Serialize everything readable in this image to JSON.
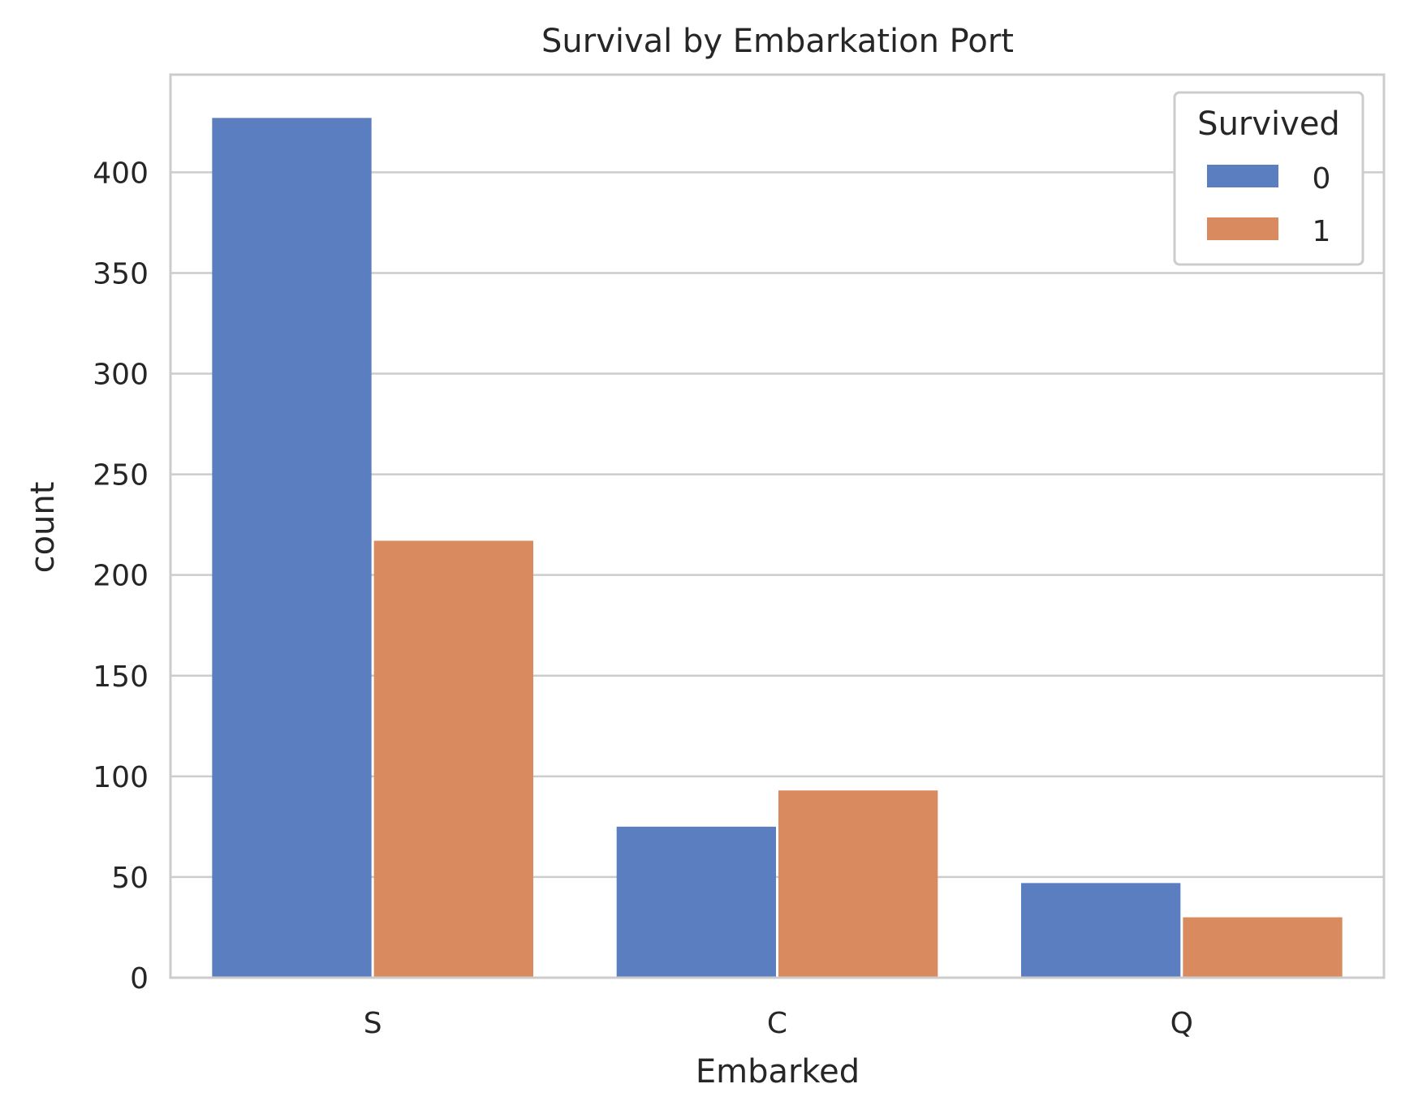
{
  "chart_data": {
    "type": "bar",
    "title": "Survival by Embarkation Port",
    "xlabel": "Embarked",
    "ylabel": "count",
    "categories": [
      "S",
      "C",
      "Q"
    ],
    "series": [
      {
        "name": "0",
        "values": [
          427,
          75,
          47
        ],
        "color": "#5b7ec1"
      },
      {
        "name": "1",
        "values": [
          217,
          93,
          30
        ],
        "color": "#d98b5f"
      }
    ],
    "ylim": [
      0,
      448.5
    ],
    "yticks": [
      0,
      50,
      100,
      150,
      200,
      250,
      300,
      350,
      400
    ],
    "grid": true,
    "legend": {
      "title": "Survived",
      "placement": "top-right"
    }
  }
}
